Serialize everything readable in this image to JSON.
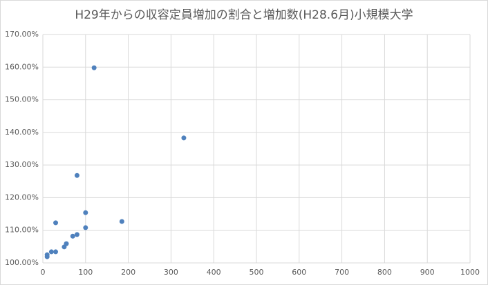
{
  "chart_data": {
    "type": "scatter",
    "title": "H29年からの収容定員増加の割合と増加数(H28.6月)小規模大学",
    "color": "#4f81bd",
    "grid": true,
    "x": [
      10,
      10,
      20,
      30,
      30,
      50,
      55,
      70,
      80,
      80,
      100,
      100,
      120,
      185,
      330
    ],
    "values": [
      102.5,
      101.9,
      103.4,
      103.4,
      112.3,
      104.9,
      105.9,
      108.2,
      108.7,
      126.8,
      110.8,
      115.4,
      159.8,
      112.7,
      138.3
    ],
    "xlim": [
      0,
      1000
    ],
    "xticks": [
      0,
      100,
      200,
      300,
      400,
      500,
      600,
      700,
      800,
      900,
      1000
    ],
    "ylim": [
      100,
      170
    ],
    "yticks": [
      {
        "value": 100,
        "label": "100.00%"
      },
      {
        "value": 110,
        "label": "110.00%"
      },
      {
        "value": 120,
        "label": "120.00%"
      },
      {
        "value": 130,
        "label": "130.00%"
      },
      {
        "value": 140,
        "label": "140.00%"
      },
      {
        "value": 150,
        "label": "150.00%"
      },
      {
        "value": 160,
        "label": "160.00%"
      },
      {
        "value": 170,
        "label": "170.00%"
      }
    ]
  }
}
